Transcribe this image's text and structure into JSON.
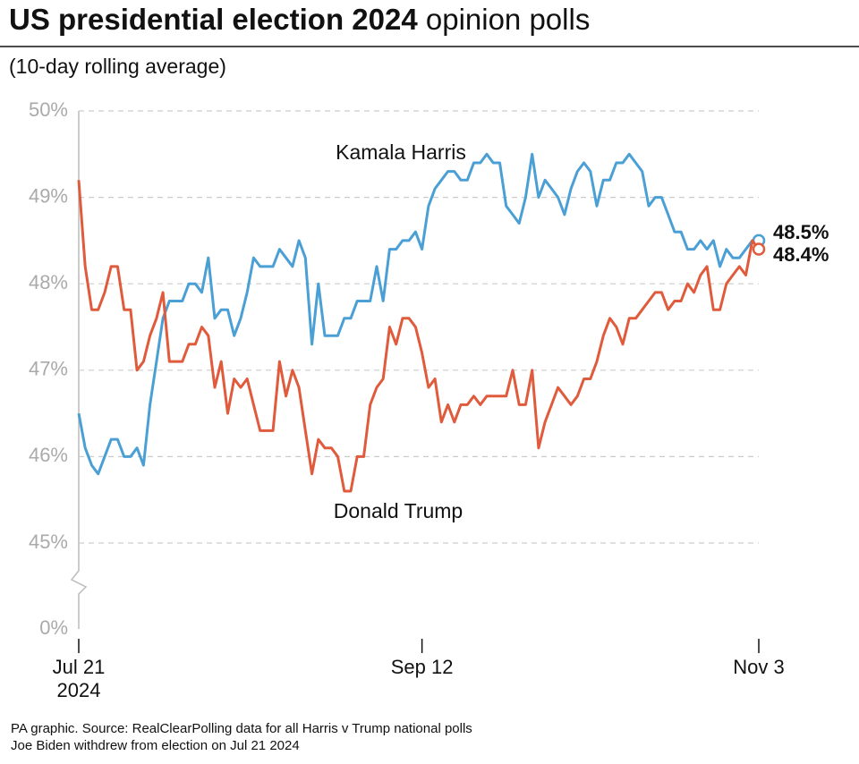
{
  "chart_data": {
    "type": "line",
    "title": "US presidential election 2024",
    "title_light": "opinion polls",
    "subtitle": "(10-day rolling average)",
    "source": "PA graphic. Source: RealClearPolling data for all Harris v Trump national polls",
    "note": "Joe Biden withdrew from election on Jul 21 2024",
    "x": [
      "2024-07-21",
      "2024-07-22",
      "2024-07-23",
      "2024-07-24",
      "2024-07-25",
      "2024-07-26",
      "2024-07-27",
      "2024-07-28",
      "2024-07-29",
      "2024-07-30",
      "2024-07-31",
      "2024-08-01",
      "2024-08-02",
      "2024-08-03",
      "2024-08-04",
      "2024-08-05",
      "2024-08-06",
      "2024-08-07",
      "2024-08-08",
      "2024-08-09",
      "2024-08-10",
      "2024-08-11",
      "2024-08-12",
      "2024-08-13",
      "2024-08-14",
      "2024-08-15",
      "2024-08-16",
      "2024-08-17",
      "2024-08-18",
      "2024-08-19",
      "2024-08-20",
      "2024-08-21",
      "2024-08-22",
      "2024-08-23",
      "2024-08-24",
      "2024-08-25",
      "2024-08-26",
      "2024-08-27",
      "2024-08-28",
      "2024-08-29",
      "2024-08-30",
      "2024-08-31",
      "2024-09-01",
      "2024-09-02",
      "2024-09-03",
      "2024-09-04",
      "2024-09-05",
      "2024-09-06",
      "2024-09-07",
      "2024-09-08",
      "2024-09-09",
      "2024-09-10",
      "2024-09-11",
      "2024-09-12",
      "2024-09-13",
      "2024-09-14",
      "2024-09-15",
      "2024-09-16",
      "2024-09-17",
      "2024-09-18",
      "2024-09-19",
      "2024-09-20",
      "2024-09-21",
      "2024-09-22",
      "2024-09-23",
      "2024-09-24",
      "2024-09-25",
      "2024-09-26",
      "2024-09-27",
      "2024-09-28",
      "2024-09-29",
      "2024-09-30",
      "2024-10-01",
      "2024-10-02",
      "2024-10-03",
      "2024-10-04",
      "2024-10-05",
      "2024-10-06",
      "2024-10-07",
      "2024-10-08",
      "2024-10-09",
      "2024-10-10",
      "2024-10-11",
      "2024-10-12",
      "2024-10-13",
      "2024-10-14",
      "2024-10-15",
      "2024-10-16",
      "2024-10-17",
      "2024-10-18",
      "2024-10-19",
      "2024-10-20",
      "2024-10-21",
      "2024-10-22",
      "2024-10-23",
      "2024-10-24",
      "2024-10-25",
      "2024-10-26",
      "2024-10-27",
      "2024-10-28",
      "2024-10-29",
      "2024-10-30",
      "2024-10-31",
      "2024-11-01",
      "2024-11-02",
      "2024-11-03"
    ],
    "series": [
      {
        "name": "Kamala Harris",
        "color": "#4a9fd5",
        "end_label": "48.5%",
        "values": [
          46.5,
          46.1,
          45.9,
          45.8,
          46.0,
          46.2,
          46.2,
          46.0,
          46.0,
          46.1,
          45.9,
          46.6,
          47.1,
          47.6,
          47.8,
          47.8,
          47.8,
          48.0,
          48.0,
          47.9,
          48.3,
          47.6,
          47.7,
          47.7,
          47.4,
          47.6,
          47.9,
          48.3,
          48.2,
          48.2,
          48.2,
          48.4,
          48.3,
          48.2,
          48.5,
          48.3,
          47.3,
          48.0,
          47.4,
          47.4,
          47.4,
          47.6,
          47.6,
          47.8,
          47.8,
          47.8,
          48.2,
          47.8,
          48.4,
          48.4,
          48.5,
          48.5,
          48.6,
          48.4,
          48.9,
          49.1,
          49.2,
          49.3,
          49.3,
          49.2,
          49.2,
          49.4,
          49.4,
          49.5,
          49.4,
          49.4,
          48.9,
          48.8,
          48.7,
          49.0,
          49.5,
          49.0,
          49.2,
          49.1,
          49.0,
          48.8,
          49.1,
          49.3,
          49.4,
          49.3,
          48.9,
          49.2,
          49.2,
          49.4,
          49.4,
          49.5,
          49.4,
          49.3,
          48.9,
          49.0,
          49.0,
          48.8,
          48.6,
          48.6,
          48.4,
          48.4,
          48.5,
          48.4,
          48.5,
          48.2,
          48.4,
          48.3,
          48.3,
          48.4,
          48.5,
          48.5
        ]
      },
      {
        "name": "Donald Trump",
        "color": "#e05a3c",
        "end_label": "48.4%",
        "values": [
          49.2,
          48.2,
          47.7,
          47.7,
          47.9,
          48.2,
          48.2,
          47.7,
          47.7,
          47.0,
          47.1,
          47.4,
          47.6,
          47.9,
          47.1,
          47.1,
          47.1,
          47.3,
          47.3,
          47.5,
          47.4,
          46.8,
          47.1,
          46.5,
          46.9,
          46.8,
          46.9,
          46.6,
          46.3,
          46.3,
          46.3,
          47.1,
          46.7,
          47.0,
          46.8,
          46.3,
          45.8,
          46.2,
          46.1,
          46.1,
          46.0,
          45.6,
          45.6,
          46.0,
          46.0,
          46.6,
          46.8,
          46.9,
          47.5,
          47.3,
          47.6,
          47.6,
          47.5,
          47.2,
          46.8,
          46.9,
          46.4,
          46.6,
          46.4,
          46.6,
          46.6,
          46.7,
          46.6,
          46.7,
          46.7,
          46.7,
          46.7,
          47.0,
          46.6,
          46.6,
          47.0,
          46.1,
          46.4,
          46.6,
          46.8,
          46.7,
          46.6,
          46.7,
          46.9,
          46.9,
          47.1,
          47.4,
          47.6,
          47.5,
          47.3,
          47.6,
          47.6,
          47.7,
          47.8,
          47.9,
          47.9,
          47.7,
          47.8,
          47.8,
          48.0,
          47.9,
          48.1,
          48.2,
          47.7,
          47.7,
          48.0,
          48.1,
          48.2,
          48.1,
          48.5,
          48.4
        ]
      }
    ],
    "xlim": [
      "2024-07-21",
      "2024-11-03"
    ],
    "xticks": [
      {
        "value": "2024-07-21",
        "label": "Jul 21\n2024"
      },
      {
        "value": "2024-09-12",
        "label": "Sep 12"
      },
      {
        "value": "2024-11-03",
        "label": "Nov 3"
      }
    ],
    "ylim": [
      45,
      50
    ],
    "yticks": [
      {
        "value": 0,
        "label": "0%"
      },
      {
        "value": 45,
        "label": "45%"
      },
      {
        "value": 46,
        "label": "46%"
      },
      {
        "value": 47,
        "label": "47%"
      },
      {
        "value": 48,
        "label": "48%"
      },
      {
        "value": 49,
        "label": "49%"
      },
      {
        "value": 50,
        "label": "50%"
      }
    ],
    "y_axis_break": true,
    "grid": true
  }
}
